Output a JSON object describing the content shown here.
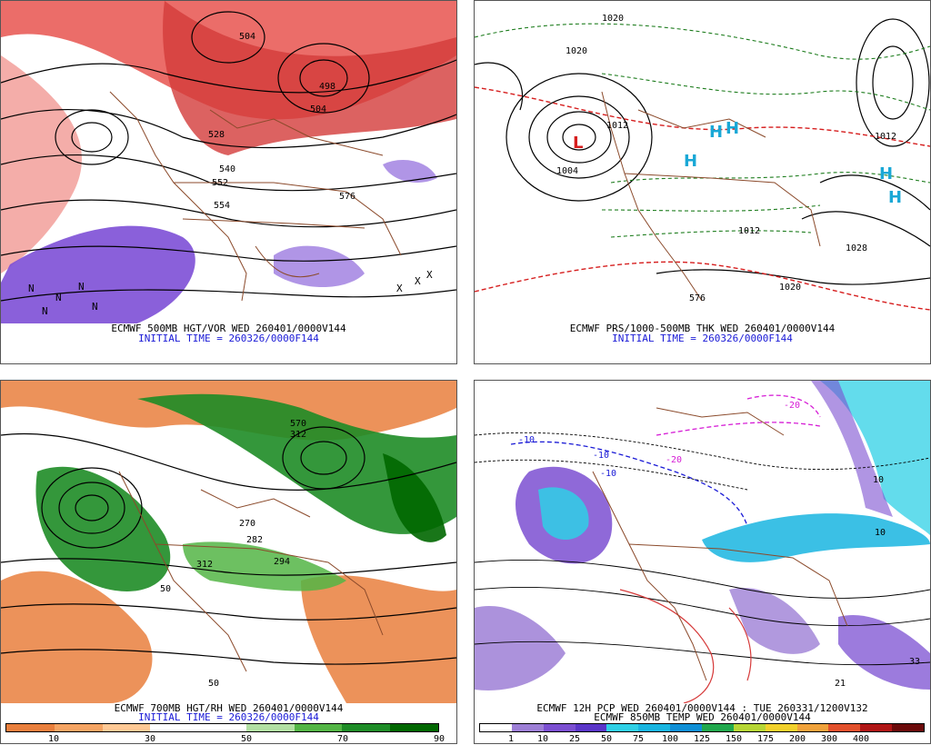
{
  "panels": [
    {
      "id": "p1",
      "line1": "ECMWF 500MB HGT/VOR WED 260401/0000V144",
      "line2": "INITIAL TIME = 260326/0000F144",
      "contour_labels": [
        "504",
        "498",
        "504",
        "540",
        "552",
        "554",
        "576",
        "528"
      ],
      "high_low_marks": [
        "N",
        "N",
        "N",
        "N",
        "N",
        "X",
        "X",
        "X"
      ]
    },
    {
      "id": "p2",
      "line1": "ECMWF PRS/1000-500MB THK WED 260401/0000V144",
      "line2": "INITIAL TIME = 260326/0000F144",
      "contour_labels": [
        "1020",
        "1012",
        "1004",
        "1012",
        "1028",
        "1020",
        "1012",
        "576",
        "1020"
      ],
      "high_low_marks": [
        "L",
        "H",
        "H",
        "H",
        "H",
        "H"
      ]
    },
    {
      "id": "p3",
      "line1": "ECMWF 700MB HGT/RH WED 260401/0000V144",
      "line2": "INITIAL TIME = 260326/0000F144",
      "contour_labels": [
        "570",
        "270",
        "282",
        "294",
        "50",
        "50",
        "312",
        "312"
      ],
      "colorbar": {
        "colors": [
          "#e97f3d",
          "#f5a463",
          "#ffc995",
          "#ffffff",
          "#ffffff",
          "#b2e0a3",
          "#53b545",
          "#1e8c26",
          "#006700"
        ],
        "ticks": [
          "10",
          "30",
          "50",
          "70",
          "90"
        ]
      }
    },
    {
      "id": "p4",
      "line1": "ECMWF 12H PCP WED 260401/0000V144 : TUE 260331/1200V132",
      "line2": "ECMWF 850MB TEMP WED 260401/0000V144",
      "contour_labels": [
        "-10",
        "-10",
        "-20",
        "10",
        "-20",
        "10",
        "-10",
        "21",
        "33"
      ],
      "colorbar": {
        "colors": [
          "#ffffff",
          "#9d7fd6",
          "#7b4fd1",
          "#5a35c8",
          "#2fd0e6",
          "#19b5e0",
          "#0f8fd6",
          "#21a84d",
          "#b6d635",
          "#f2d12c",
          "#f0a23b",
          "#e2502c",
          "#b01616",
          "#6b0a0a"
        ],
        "ticks": [
          "1",
          "10",
          "25",
          "50",
          "75",
          "100",
          "125",
          "150",
          "175",
          "200",
          "300",
          "400"
        ]
      }
    }
  ]
}
